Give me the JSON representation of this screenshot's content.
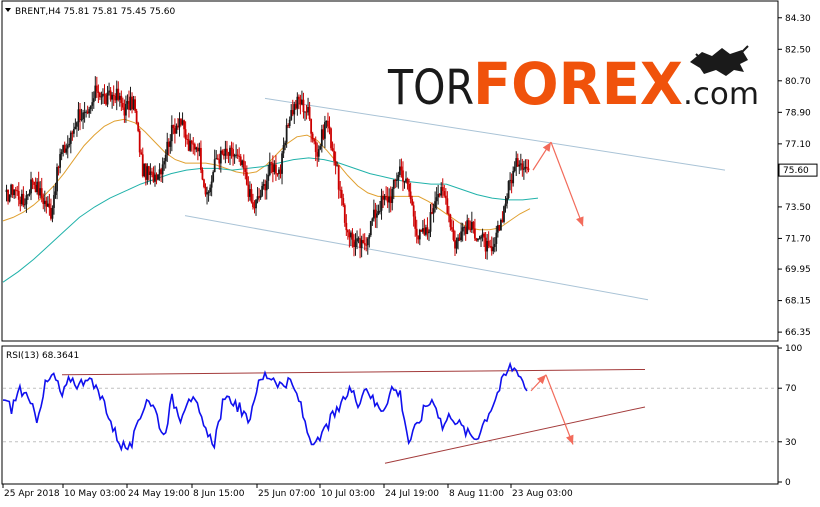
{
  "header": {
    "symbol_line": "BRENT,H4  75.81 75.81 75.45 75.60",
    "dropdown_icon": "triangle-down-icon"
  },
  "watermark": {
    "tor": "TOR",
    "forex": "FOREX",
    "dotcom": ".com",
    "mascot_icon": "bull-bear-icon",
    "colors": {
      "tor": "#1a1a1a",
      "forex": "#f0520b",
      "dotcom": "#1a1a1a"
    }
  },
  "colors": {
    "bull_candle": "#1a1a1a",
    "bear_candle": "#cc0000",
    "ma_fast": "#e0a030",
    "ma_slow": "#20b2aa",
    "channel": "#a9c3d6",
    "forecast_arrow": "#f26b5b",
    "rsi_line": "#1010ee",
    "rsi_trendline": "#a33b3b",
    "price_marker_bg": "#ffffff",
    "axis": "#000000"
  },
  "chart_data": [
    {
      "type": "candlestick",
      "title": "BRENT,H4  75.81 75.81 75.45 75.60",
      "ylim": [
        65.9,
        85.2
      ],
      "yticks": [
        "84.30",
        "82.50",
        "80.70",
        "78.90",
        "77.10",
        "75.60",
        "73.50",
        "71.70",
        "69.95",
        "68.15",
        "66.35"
      ],
      "current_price": "75.60",
      "x_ticks": [
        "25 Apr 2018",
        "10 May 03:00",
        "24 May 19:00",
        "8 Jun 15:00",
        "25 Jun 07:00",
        "10 Jul 03:00",
        "24 Jul 19:00",
        "8 Aug 11:00",
        "23 Aug 03:00"
      ],
      "close_path": [
        74.0,
        74.6,
        73.7,
        75.1,
        74.1,
        73.2,
        76.4,
        77.2,
        78.9,
        78.5,
        80.3,
        79.6,
        80.0,
        79.1,
        79.5,
        75.6,
        75.2,
        75.8,
        77.6,
        78.6,
        76.9,
        77.1,
        73.9,
        76.3,
        76.5,
        76.5,
        75.6,
        73.4,
        74.4,
        75.9,
        75.6,
        78.8,
        79.6,
        78.9,
        76.5,
        78.5,
        76.0,
        72.6,
        71.5,
        71.2,
        72.8,
        73.8,
        74.1,
        75.8,
        74.4,
        71.8,
        72.1,
        74.5,
        74.0,
        71.4,
        72.4,
        72.2,
        71.6,
        70.7,
        72.7,
        75.0,
        76.3,
        75.6
      ],
      "series": [
        {
          "name": "MA (fast)",
          "values": [
            72.7,
            72.9,
            73.2,
            73.6,
            74.1,
            74.7,
            75.4,
            76.2,
            77.0,
            77.6,
            78.1,
            78.4,
            78.5,
            78.3,
            77.8,
            77.2,
            76.6,
            76.2,
            76.0,
            76.0,
            76.0,
            75.9,
            75.7,
            75.5,
            75.4,
            75.5,
            75.9,
            76.5,
            77.1,
            77.5,
            77.6,
            77.3,
            76.7,
            76.0,
            75.3,
            74.7,
            74.3,
            74.1,
            74.1,
            74.1,
            74.1,
            74.1,
            73.8,
            73.4,
            73.0,
            72.6,
            72.3,
            72.2,
            72.2,
            72.3,
            72.7,
            73.1,
            73.4
          ]
        },
        {
          "name": "MA (slow)",
          "values": [
            69.2,
            69.8,
            70.5,
            71.3,
            72.1,
            72.9,
            73.5,
            74.0,
            74.4,
            74.8,
            75.1,
            75.4,
            75.6,
            75.7,
            75.7,
            75.6,
            75.7,
            75.8,
            76.0,
            76.2,
            76.3,
            76.2,
            76.0,
            75.7,
            75.4,
            75.2,
            75.0,
            74.9,
            74.8,
            74.8,
            74.5,
            74.2,
            74.0,
            73.9,
            73.9,
            74.0
          ]
        }
      ],
      "channel": {
        "upper": [
          [
            265,
            79.7
          ],
          [
            725,
            75.6
          ]
        ],
        "lower": [
          [
            185,
            73.0
          ],
          [
            648,
            68.2
          ]
        ]
      },
      "forecast": [
        [
          "now",
          75.6
        ],
        [
          "peak",
          77.2
        ],
        [
          "target",
          72.4
        ]
      ]
    },
    {
      "type": "line",
      "title": "RSI(13) 68.3641",
      "ylim": [
        0,
        100
      ],
      "yticks": [
        "100",
        "70",
        "30",
        "0"
      ],
      "levels": [
        30,
        70
      ],
      "current_value": 68.3641,
      "series": [
        {
          "name": "RSI(13)",
          "values": [
            62,
            55,
            70,
            60,
            48,
            72,
            80,
            64,
            78,
            72,
            80,
            68,
            60,
            40,
            28,
            25,
            42,
            64,
            54,
            34,
            62,
            49,
            65,
            55,
            36,
            30,
            58,
            62,
            55,
            44,
            70,
            80,
            78,
            72,
            74,
            62,
            38,
            26,
            38,
            49,
            56,
            70,
            60,
            72,
            58,
            55,
            70,
            66,
            30,
            42,
            57,
            62,
            41,
            51,
            43,
            36,
            33,
            46,
            59,
            74,
            86,
            83,
            68
          ]
        }
      ],
      "trendlines": [
        {
          "from": [
            62,
            80
          ],
          "to": [
            645,
            84
          ]
        },
        {
          "from": [
            385,
            14
          ],
          "to": [
            645,
            56
          ]
        }
      ],
      "forecast": [
        [
          "now",
          68
        ],
        [
          "peak",
          80
        ],
        [
          "target",
          28
        ]
      ]
    }
  ]
}
